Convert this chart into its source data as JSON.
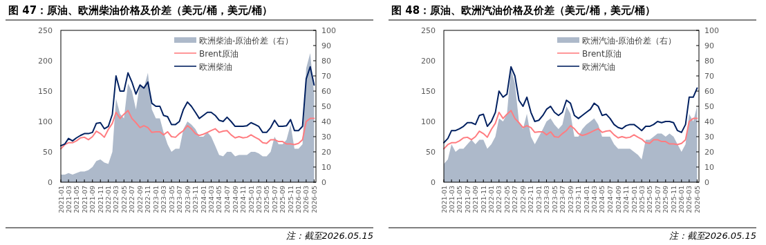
{
  "chart_data": [
    {
      "type": "line",
      "title": "图 47：原油、欧洲柴油价格及价差（美元/桶，美元/桶）",
      "annotations": [
        "注：截至2026.05.15"
      ],
      "legend": "top right",
      "x": [
        "2021-01",
        "2021-02",
        "2021-03",
        "2021-04",
        "2021-05",
        "2021-06",
        "2021-07",
        "2021-08",
        "2021-09",
        "2021-10",
        "2021-11",
        "2021-12",
        "2022-01",
        "2022-02",
        "2022-03",
        "2022-04",
        "2022-05",
        "2022-06",
        "2022-07",
        "2022-08",
        "2022-09",
        "2022-10",
        "2022-11",
        "2022-12",
        "2023-01",
        "2023-02",
        "2023-03",
        "2023-04",
        "2023-05",
        "2023-06",
        "2023-07",
        "2023-08",
        "2023-09",
        "2023-10",
        "2023-11",
        "2023-12",
        "2024-01",
        "2024-02",
        "2024-03",
        "2024-04",
        "2024-05",
        "2024-06",
        "2024-07",
        "2024-08",
        "2024-09",
        "2024-10",
        "2024-11",
        "2024-12",
        "2025-01",
        "2025-02",
        "2025-03",
        "2025-04",
        "2025-05",
        "2025-06",
        "2025-07",
        "2025-08",
        "2025-09",
        "2025-10",
        "2025-11",
        "2025-12",
        "2026-01",
        "2026-02",
        "2026-03",
        "2026-04",
        "2026-05"
      ],
      "xlim": [
        "2021-01",
        "2026-05-15"
      ],
      "xticks": [
        "2021-01",
        "2021-03",
        "2021-05",
        "2021-07",
        "2021-09",
        "2021-11",
        "2022-01",
        "2022-03",
        "2022-05",
        "2022-07",
        "2022-09",
        "2022-11",
        "2023-01",
        "2023-03",
        "2023-05",
        "2023-07",
        "2023-09",
        "2023-11",
        "2024-01",
        "2024-03",
        "2024-05",
        "2024-07",
        "2024-09",
        "2024-11",
        "2025-01",
        "2025-03",
        "2025-05",
        "2025-07",
        "2025-09",
        "2025-11",
        "2026-01",
        "2026-03",
        "2026-05"
      ],
      "ylim": [
        0,
        250
      ],
      "yticks": [
        0,
        50,
        100,
        150,
        200,
        250
      ],
      "y2lim": [
        0,
        100
      ],
      "y2ticks": [
        0,
        10,
        20,
        30,
        40,
        50,
        60,
        70,
        80,
        90,
        100
      ],
      "series": [
        {
          "name": "欧洲柴油-原油价差（右）",
          "type": "area",
          "axis": "y2",
          "color": "#adb9ca",
          "values": [
            5,
            5,
            6,
            5,
            6,
            7,
            7,
            8,
            10,
            14,
            15,
            13,
            12,
            20,
            55,
            45,
            42,
            65,
            60,
            48,
            65,
            62,
            72,
            48,
            42,
            42,
            33,
            25,
            20,
            22,
            22,
            35,
            40,
            38,
            35,
            30,
            30,
            33,
            30,
            24,
            18,
            17,
            20,
            20,
            17,
            18,
            18,
            18,
            20,
            20,
            19,
            17,
            17,
            20,
            30,
            25,
            25,
            28,
            38,
            22,
            22,
            25,
            75,
            85,
            58
          ]
        },
        {
          "name": "Brent原油",
          "color": "#ff7c80",
          "values": [
            55,
            62,
            65,
            65,
            68,
            73,
            74,
            70,
            75,
            84,
            80,
            74,
            87,
            97,
            115,
            105,
            112,
            118,
            105,
            98,
            90,
            93,
            90,
            82,
            83,
            83,
            78,
            83,
            75,
            74,
            80,
            85,
            93,
            88,
            80,
            77,
            79,
            82,
            85,
            88,
            82,
            84,
            85,
            78,
            73,
            75,
            73,
            74,
            78,
            74,
            71,
            65,
            64,
            70,
            70,
            67,
            67,
            63,
            63,
            62,
            64,
            70,
            100,
            105,
            105
          ]
        },
        {
          "name": "欧洲柴油",
          "color": "#002060",
          "values": [
            60,
            63,
            72,
            68,
            73,
            77,
            80,
            80,
            82,
            97,
            98,
            88,
            92,
            112,
            175,
            150,
            150,
            180,
            165,
            145,
            160,
            155,
            165,
            130,
            125,
            125,
            110,
            108,
            95,
            95,
            100,
            120,
            132,
            125,
            115,
            105,
            110,
            115,
            115,
            110,
            102,
            100,
            107,
            100,
            92,
            92,
            92,
            93,
            98,
            95,
            92,
            82,
            82,
            90,
            102,
            92,
            92,
            93,
            103,
            85,
            85,
            92,
            170,
            190,
            160
          ]
        }
      ]
    },
    {
      "type": "line",
      "title": "图 48：原油、欧洲汽油价格及价差（美元/桶，美元/桶）",
      "annotations": [
        "注：截至2026.05.15"
      ],
      "legend": "top right",
      "x": [
        "2021-01",
        "2021-02",
        "2021-03",
        "2021-04",
        "2021-05",
        "2021-06",
        "2021-07",
        "2021-08",
        "2021-09",
        "2021-10",
        "2021-11",
        "2021-12",
        "2022-01",
        "2022-02",
        "2022-03",
        "2022-04",
        "2022-05",
        "2022-06",
        "2022-07",
        "2022-08",
        "2022-09",
        "2022-10",
        "2022-11",
        "2022-12",
        "2023-01",
        "2023-02",
        "2023-03",
        "2023-04",
        "2023-05",
        "2023-06",
        "2023-07",
        "2023-08",
        "2023-09",
        "2023-10",
        "2023-11",
        "2023-12",
        "2024-01",
        "2024-02",
        "2024-03",
        "2024-04",
        "2024-05",
        "2024-06",
        "2024-07",
        "2024-08",
        "2024-09",
        "2024-10",
        "2024-11",
        "2024-12",
        "2025-01",
        "2025-02",
        "2025-03",
        "2025-04",
        "2025-05",
        "2025-06",
        "2025-07",
        "2025-08",
        "2025-09",
        "2025-10",
        "2025-11",
        "2025-12",
        "2026-01",
        "2026-02",
        "2026-03",
        "2026-04",
        "2026-05"
      ],
      "xlim": [
        "2021-01",
        "2026-05-15"
      ],
      "xticks": [
        "2021-01",
        "2021-03",
        "2021-05",
        "2021-07",
        "2021-09",
        "2021-11",
        "2022-01",
        "2022-03",
        "2022-05",
        "2022-07",
        "2022-09",
        "2022-11",
        "2023-01",
        "2023-03",
        "2023-05",
        "2023-07",
        "2023-09",
        "2023-11",
        "2024-01",
        "2024-03",
        "2024-05",
        "2024-07",
        "2024-09",
        "2024-11",
        "2025-01",
        "2025-03",
        "2025-05",
        "2025-07",
        "2025-09",
        "2025-11",
        "2026-01",
        "2026-03",
        "2026-05"
      ],
      "ylim": [
        0,
        250
      ],
      "yticks": [
        0,
        50,
        100,
        150,
        200,
        250
      ],
      "y2lim": [
        0,
        100
      ],
      "y2ticks": [
        0,
        10,
        20,
        30,
        40,
        50,
        60,
        70,
        80,
        90,
        100
      ],
      "series": [
        {
          "name": "欧洲汽油-原油价差（右）",
          "type": "area",
          "axis": "y2",
          "color": "#adb9ca",
          "values": [
            12,
            15,
            25,
            20,
            22,
            22,
            25,
            28,
            25,
            28,
            28,
            22,
            25,
            30,
            42,
            40,
            45,
            75,
            65,
            40,
            35,
            45,
            30,
            25,
            30,
            35,
            40,
            42,
            38,
            35,
            38,
            50,
            45,
            30,
            30,
            35,
            38,
            40,
            42,
            38,
            30,
            30,
            30,
            25,
            22,
            22,
            22,
            22,
            20,
            18,
            15,
            28,
            28,
            30,
            32,
            32,
            30,
            32,
            30,
            25,
            20,
            25,
            45,
            40,
            50
          ]
        },
        {
          "name": "Brent原油",
          "color": "#ff7c80",
          "values": [
            55,
            62,
            65,
            65,
            68,
            73,
            74,
            70,
            75,
            84,
            80,
            74,
            87,
            97,
            115,
            105,
            112,
            118,
            105,
            98,
            90,
            93,
            90,
            82,
            83,
            83,
            78,
            83,
            75,
            74,
            80,
            85,
            93,
            88,
            80,
            77,
            79,
            82,
            85,
            88,
            82,
            84,
            85,
            78,
            73,
            75,
            73,
            74,
            78,
            74,
            71,
            65,
            64,
            70,
            70,
            67,
            67,
            63,
            63,
            62,
            64,
            70,
            100,
            105,
            105
          ]
        },
        {
          "name": "欧洲汽油",
          "color": "#002060",
          "values": [
            65,
            72,
            85,
            85,
            88,
            92,
            98,
            98,
            95,
            110,
            112,
            92,
            100,
            115,
            150,
            140,
            145,
            190,
            175,
            135,
            125,
            140,
            115,
            100,
            102,
            110,
            120,
            125,
            115,
            110,
            115,
            135,
            130,
            110,
            105,
            110,
            115,
            120,
            130,
            125,
            110,
            112,
            105,
            95,
            90,
            88,
            93,
            95,
            95,
            90,
            85,
            92,
            92,
            95,
            100,
            98,
            100,
            100,
            98,
            85,
            82,
            95,
            140,
            140,
            155
          ]
        }
      ]
    }
  ]
}
